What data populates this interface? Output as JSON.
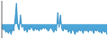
{
  "chart_data": {
    "type": "area",
    "ylim": [
      -12,
      20
    ],
    "tick_labels": false,
    "series": [
      {
        "type": "area",
        "color": "#4da6d8",
        "values": [
          -3,
          -5,
          -4,
          -7,
          -6,
          -8,
          -5,
          -9,
          -4,
          -6,
          5,
          18,
          -2,
          -5,
          8,
          -3,
          -1,
          -6,
          -4,
          -7,
          -3,
          -5,
          -2,
          -4,
          -6,
          -3,
          -5,
          -4,
          -6,
          -3,
          -5,
          -2,
          -4,
          -3,
          -5,
          -6,
          -4,
          -3,
          -5,
          -7,
          -4,
          -6,
          10,
          -3,
          8,
          -4,
          -6,
          -3,
          -5,
          -4,
          -7,
          -5,
          -8,
          -4,
          -6,
          -9,
          -5,
          -7,
          -4,
          -6,
          -5,
          -8,
          -4,
          -6,
          -5,
          -7,
          -4,
          -6,
          -5,
          -8,
          -4,
          -6,
          -5,
          -7,
          -6,
          -8,
          -5,
          -7,
          -6,
          -9
        ]
      },
      {
        "type": "line",
        "color": "#3a94c8",
        "values": [
          -3,
          -5,
          -4,
          -7,
          -6,
          -8,
          -5,
          -9,
          -4,
          -6,
          5,
          18,
          -2,
          -5,
          8,
          -3,
          -1,
          -6,
          -4,
          -7,
          -3,
          -5,
          -2,
          -4,
          -6,
          -3,
          -5,
          -4,
          -6,
          -3,
          -5,
          -2,
          -4,
          -3,
          -5,
          -6,
          -4,
          -3,
          -5,
          -7,
          -4,
          -6,
          10,
          -3,
          8,
          -4,
          -6,
          -3,
          -5,
          -4,
          -7,
          -5,
          -8,
          -4,
          -6,
          -9,
          -5,
          -7,
          -4,
          -6,
          -5,
          -8,
          -4,
          -6,
          -5,
          -7,
          -4,
          -6,
          -5,
          -8,
          -4,
          -6,
          -5,
          -7,
          -6,
          -8,
          -5,
          -7,
          -6,
          -9
        ]
      }
    ]
  }
}
